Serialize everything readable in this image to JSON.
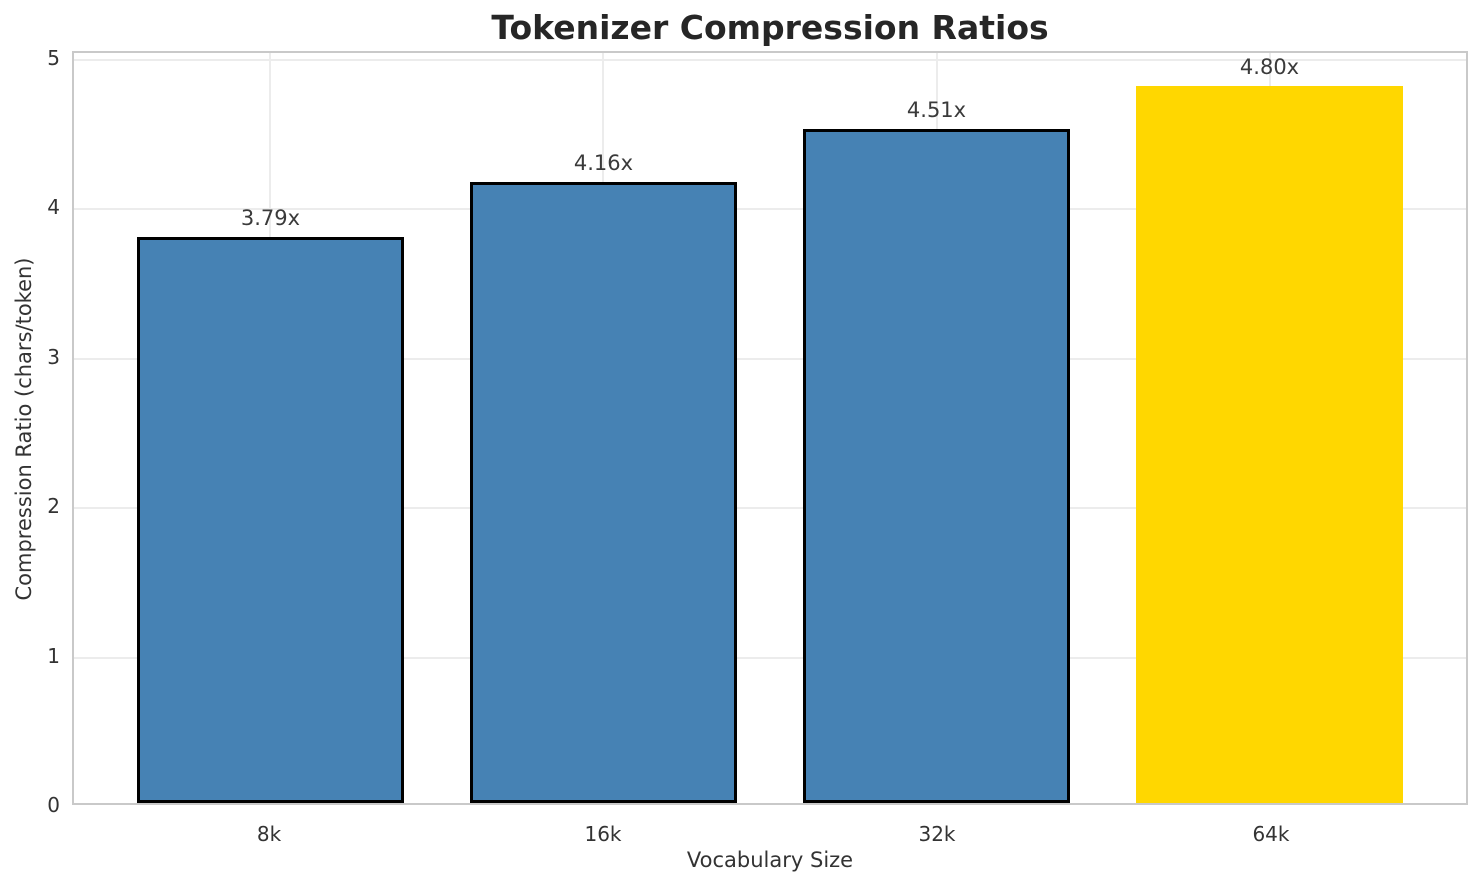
{
  "chart_data": {
    "type": "bar",
    "title": "Tokenizer Compression Ratios",
    "xlabel": "Vocabulary Size",
    "ylabel": "Compression Ratio (chars/token)",
    "categories": [
      "8k",
      "16k",
      "32k",
      "64k"
    ],
    "values": [
      3.79,
      4.16,
      4.51,
      4.8
    ],
    "value_labels": [
      "3.79x",
      "4.16x",
      "4.51x",
      "4.80x"
    ],
    "bar_colors": [
      "#4682B4",
      "#4682B4",
      "#4682B4",
      "#FFD700"
    ],
    "bar_edge_colors": [
      "#000000",
      "#000000",
      "#000000",
      "none"
    ],
    "highlight_index": 3,
    "ylim": [
      0,
      5
    ],
    "yticks": [
      0,
      1,
      2,
      3,
      4,
      5
    ],
    "grid": "both",
    "gridline_color": "#ececec",
    "spine_color": "#c9c9c9",
    "background_color": "#ffffff",
    "legend": "none"
  }
}
